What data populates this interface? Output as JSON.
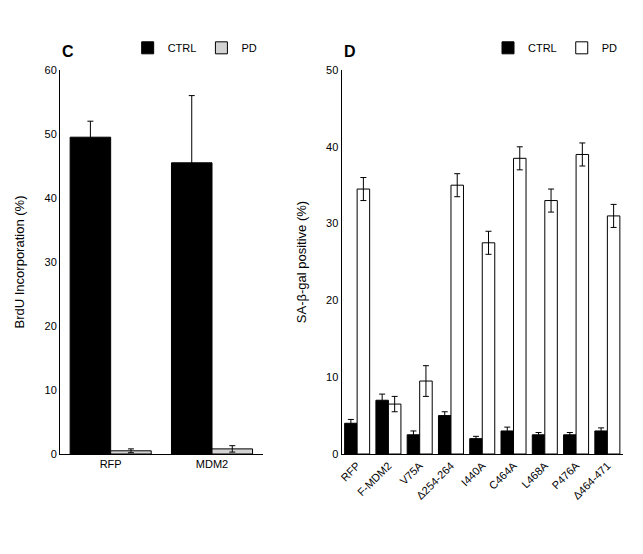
{
  "chart_data": [
    {
      "type": "bar",
      "title": "C",
      "categories": [
        "RFP",
        "MDM2"
      ],
      "series": [
        {
          "name": "CTRL",
          "color": "#000000",
          "values": [
            49.5,
            45.5
          ],
          "errors": [
            2.5,
            10.5
          ]
        },
        {
          "name": "PD",
          "color": "#d3d3d3",
          "values": [
            0.5,
            0.8
          ],
          "errors": [
            0.3,
            0.5
          ]
        }
      ],
      "ylabel": "BrdU Incorporation (%)",
      "ylim": [
        0,
        60
      ],
      "yticks": [
        0,
        10,
        20,
        30,
        40,
        50,
        60
      ],
      "grid": false,
      "legend": "upper right"
    },
    {
      "type": "bar",
      "title": "D",
      "categories": [
        "RFP",
        "F-MDM2",
        "V75A",
        "Δ254-264",
        "I440A",
        "C464A",
        "L468A",
        "P476A",
        "Δ464-471"
      ],
      "series": [
        {
          "name": "CTRL",
          "color": "#000000",
          "values": [
            4.0,
            7.0,
            2.5,
            5.0,
            2.0,
            3.0,
            2.5,
            2.5,
            3.0
          ],
          "errors": [
            0.5,
            0.8,
            0.5,
            0.5,
            0.3,
            0.5,
            0.3,
            0.3,
            0.4
          ]
        },
        {
          "name": "PD",
          "color": "#ffffff",
          "values": [
            34.5,
            6.5,
            9.5,
            35.0,
            27.5,
            38.5,
            33.0,
            39.0,
            31.0
          ],
          "errors": [
            1.5,
            1.0,
            2.0,
            1.5,
            1.5,
            1.5,
            1.5,
            1.5,
            1.5
          ]
        }
      ],
      "ylabel": "SA-β-gal positive (%)",
      "ylim": [
        0,
        50
      ],
      "yticks": [
        0,
        10,
        20,
        30,
        40,
        50
      ],
      "grid": false,
      "legend": "upper right"
    }
  ]
}
